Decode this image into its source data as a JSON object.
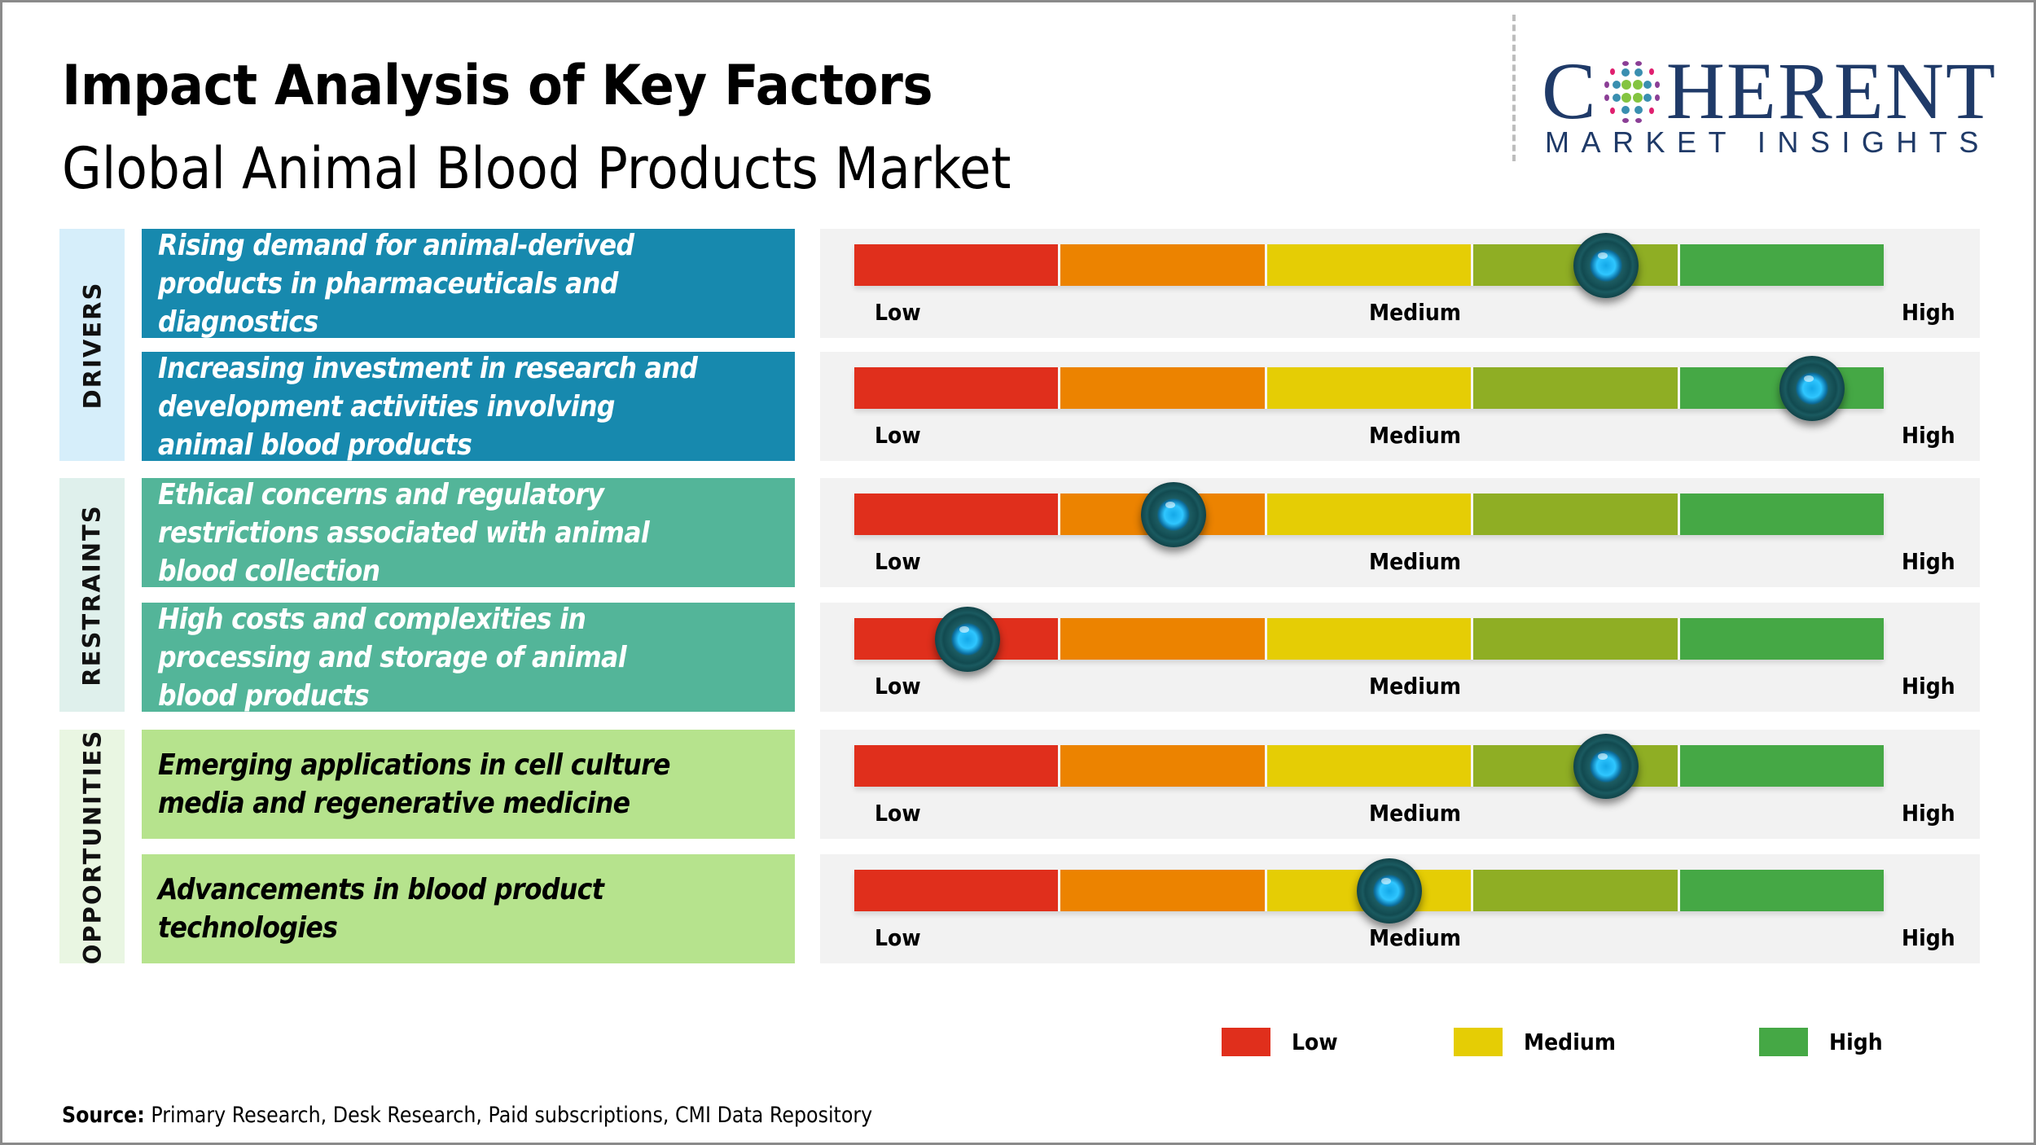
{
  "header": {
    "title": "Impact Analysis of Key Factors",
    "subtitle": "Global Animal Blood Products Market"
  },
  "logo": {
    "word_start": "C",
    "word_rest": "HERENT",
    "tagline": "MARKET INSIGHTS",
    "icon": "globe-dots-icon"
  },
  "colors": {
    "scale": [
      "#e02f1c",
      "#ec8300",
      "#e5cd05",
      "#8fae24",
      "#45a845"
    ],
    "drivers_box": "#1789ae",
    "restraints_box": "#53b599",
    "opportunities_box": "#b6e38d",
    "knob": "#1c5c62",
    "knob_center": "#2fc6ff"
  },
  "scale_labels": {
    "low": "Low",
    "medium": "Medium",
    "high": "High"
  },
  "categories": [
    {
      "label": "DRIVERS"
    },
    {
      "label": "RESTRAINTS"
    },
    {
      "label": "OPPORTUNITIES"
    }
  ],
  "chart_data": {
    "type": "table",
    "title": "Impact Analysis of Key Factors",
    "subtitle": "Global Animal Blood Products Market",
    "scale": {
      "min_label": "Low",
      "mid_label": "Medium",
      "max_label": "High",
      "range": [
        0,
        1
      ],
      "segments": 5
    },
    "rows": [
      {
        "category": "DRIVERS",
        "factor": "Rising demand for animal-derived products in pharmaceuticals and diagnostics",
        "impact": 0.73,
        "impact_level": "Medium-High"
      },
      {
        "category": "DRIVERS",
        "factor": "Increasing investment in research and development activities involving animal blood products",
        "impact": 0.93,
        "impact_level": "High"
      },
      {
        "category": "RESTRAINTS",
        "factor": "Ethical concerns and regulatory restrictions associated with animal blood collection",
        "impact": 0.31,
        "impact_level": "Low-Medium"
      },
      {
        "category": "RESTRAINTS",
        "factor": "High costs and complexities in processing and storage of animal blood products",
        "impact": 0.11,
        "impact_level": "Low"
      },
      {
        "category": "OPPORTUNITIES",
        "factor": "Emerging applications in cell culture media and regenerative medicine",
        "impact": 0.73,
        "impact_level": "Medium-High"
      },
      {
        "category": "OPPORTUNITIES",
        "factor": "Advancements in blood product technologies",
        "impact": 0.52,
        "impact_level": "Medium"
      }
    ],
    "legend": [
      {
        "label": "Low",
        "color": "#e02f1c"
      },
      {
        "label": "Medium",
        "color": "#e5cd05"
      },
      {
        "label": "High",
        "color": "#45a845"
      }
    ]
  },
  "source": {
    "prefix": "Source:",
    "text": " Primary Research, Desk Research, Paid subscriptions, CMI Data Repository"
  }
}
